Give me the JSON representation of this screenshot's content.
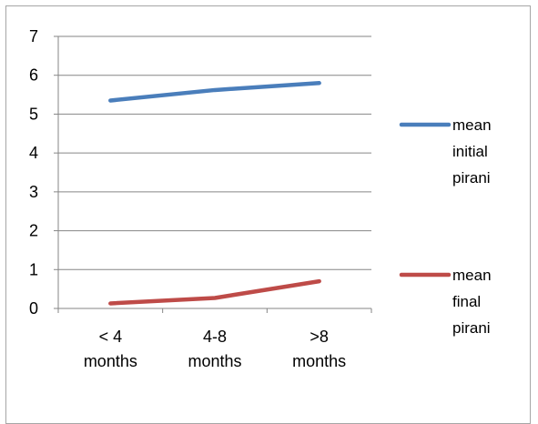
{
  "chart_data": {
    "type": "line",
    "title": "",
    "xlabel": "",
    "ylabel": "",
    "categories": [
      [
        "< 4",
        "months"
      ],
      [
        "4-8",
        "months"
      ],
      [
        ">8",
        "months"
      ]
    ],
    "ylim": [
      0,
      7
    ],
    "yticks": [
      "0",
      "1",
      "2",
      "3",
      "4",
      "5",
      "6",
      "7"
    ],
    "grid": true,
    "legend_position": "right",
    "series": [
      {
        "name": [
          "mean",
          "initial",
          "pirani"
        ],
        "color": "#4a7ebb",
        "values": [
          5.35,
          5.62,
          5.8
        ]
      },
      {
        "name": [
          "mean",
          "final",
          "pirani"
        ],
        "color": "#be4b48",
        "values": [
          0.13,
          0.27,
          0.7
        ]
      }
    ]
  }
}
